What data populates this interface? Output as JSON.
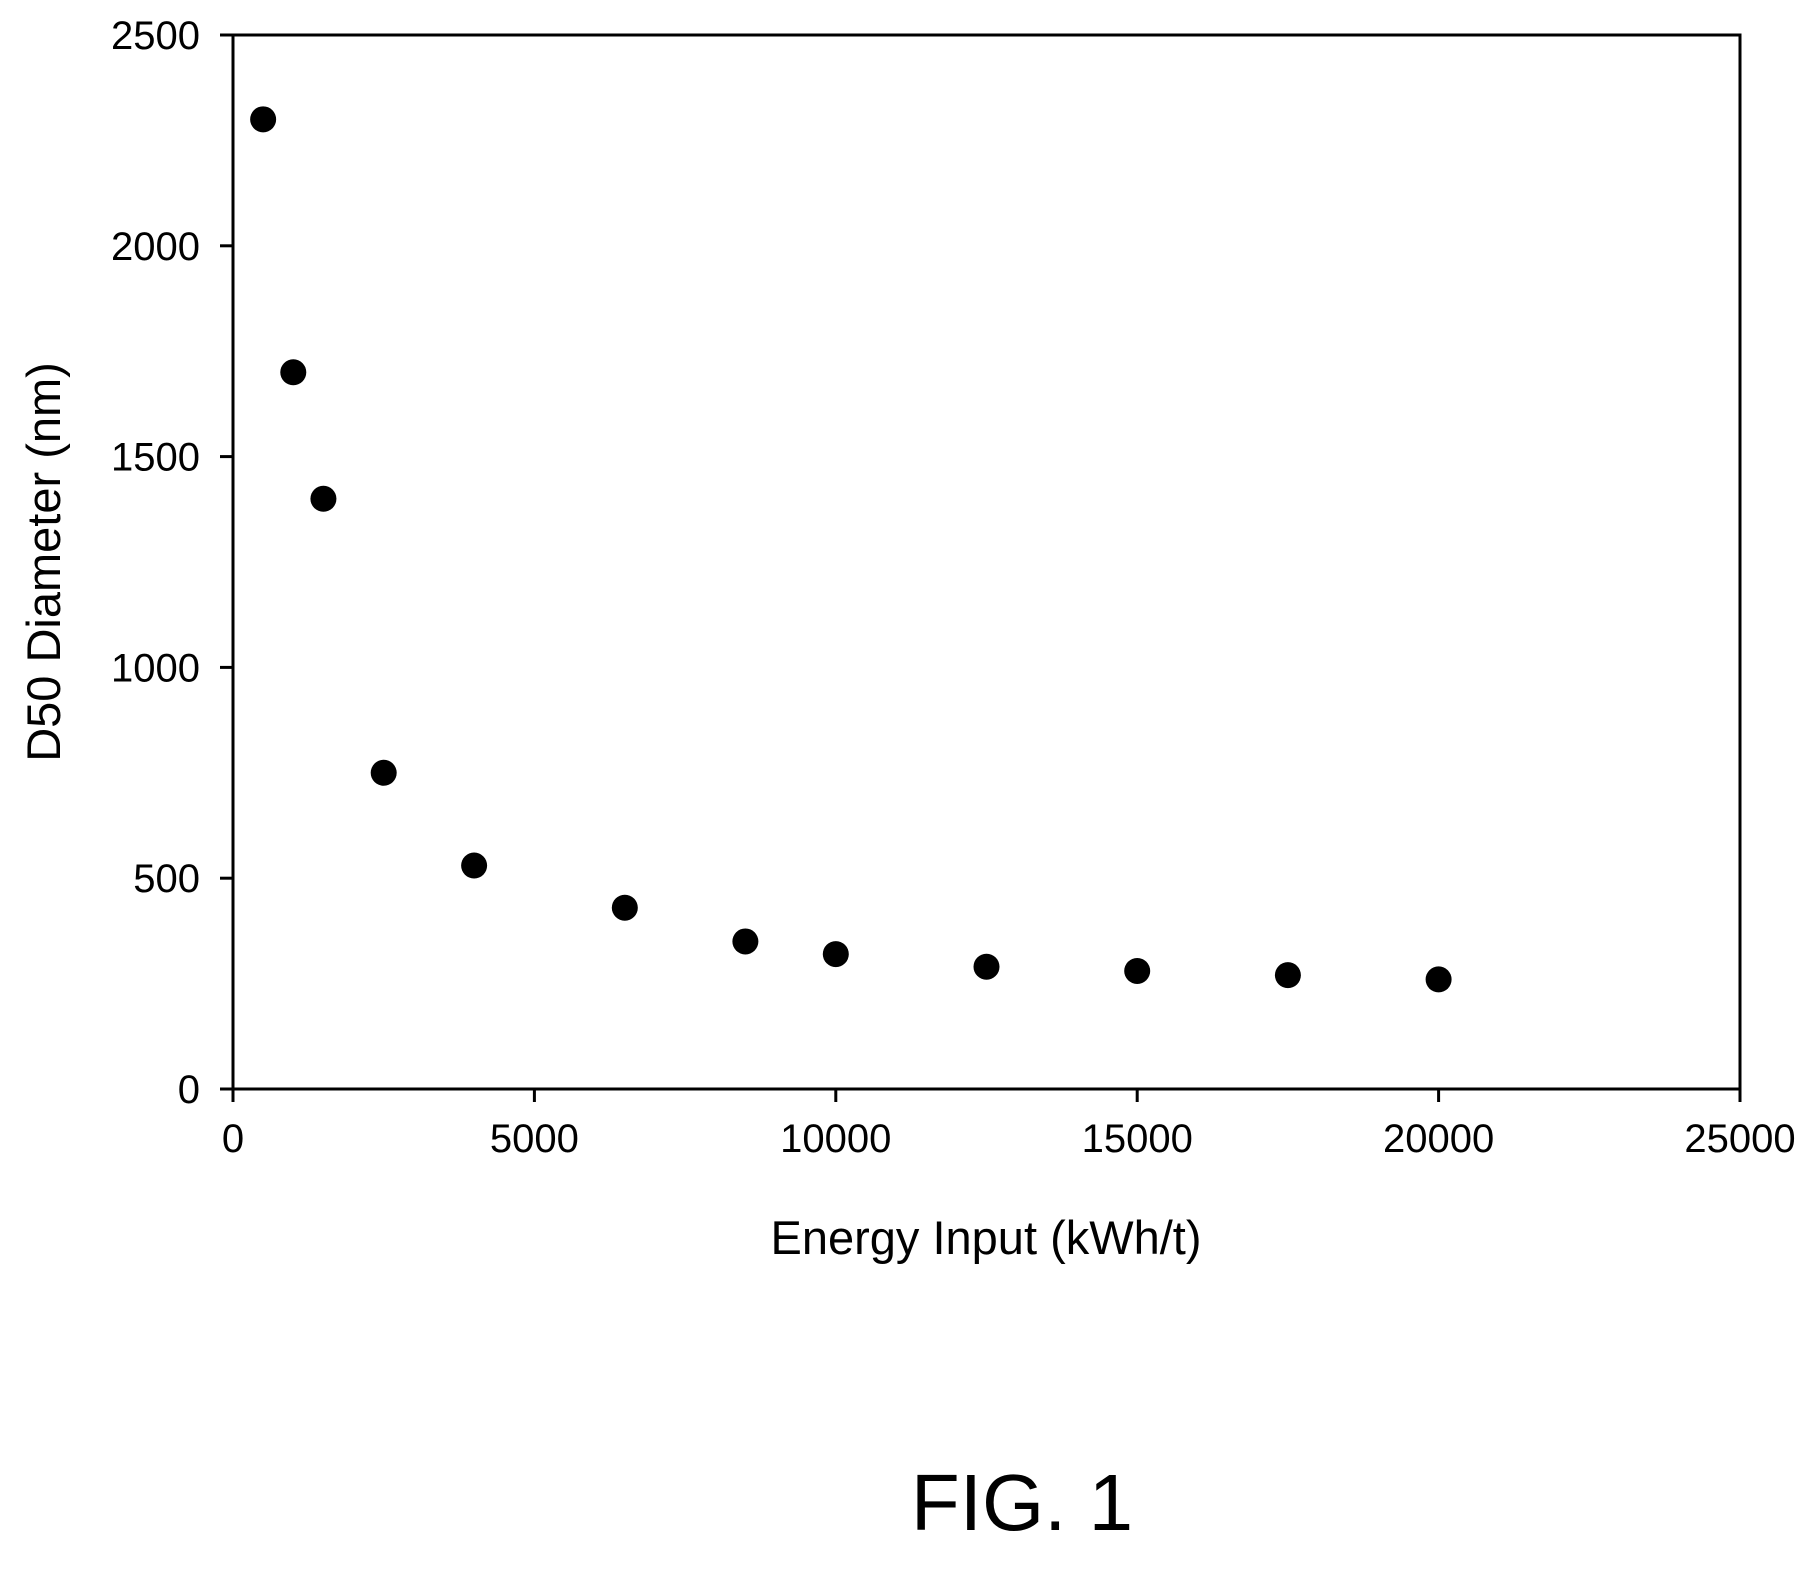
{
  "figure_label": "FIG. 1",
  "chart_data": {
    "type": "scatter",
    "title": "",
    "xlabel": "Energy Input (kWh/t)",
    "ylabel": "D50 Diameter (nm)",
    "xlim": [
      0,
      25000
    ],
    "ylim": [
      0,
      2500
    ],
    "xticks": [
      0,
      5000,
      10000,
      15000,
      20000,
      25000
    ],
    "yticks": [
      0,
      500,
      1000,
      1500,
      2000,
      2500
    ],
    "grid": false,
    "legend": "none",
    "marker_color": "#000000",
    "series": [
      {
        "points": [
          {
            "x": 500,
            "y": 2300
          },
          {
            "x": 1000,
            "y": 1700
          },
          {
            "x": 1500,
            "y": 1400
          },
          {
            "x": 2500,
            "y": 750
          },
          {
            "x": 4000,
            "y": 530
          },
          {
            "x": 6500,
            "y": 430
          },
          {
            "x": 8500,
            "y": 350
          },
          {
            "x": 10000,
            "y": 320
          },
          {
            "x": 12500,
            "y": 290
          },
          {
            "x": 15000,
            "y": 280
          },
          {
            "x": 17500,
            "y": 270
          },
          {
            "x": 20000,
            "y": 260
          }
        ]
      }
    ]
  }
}
